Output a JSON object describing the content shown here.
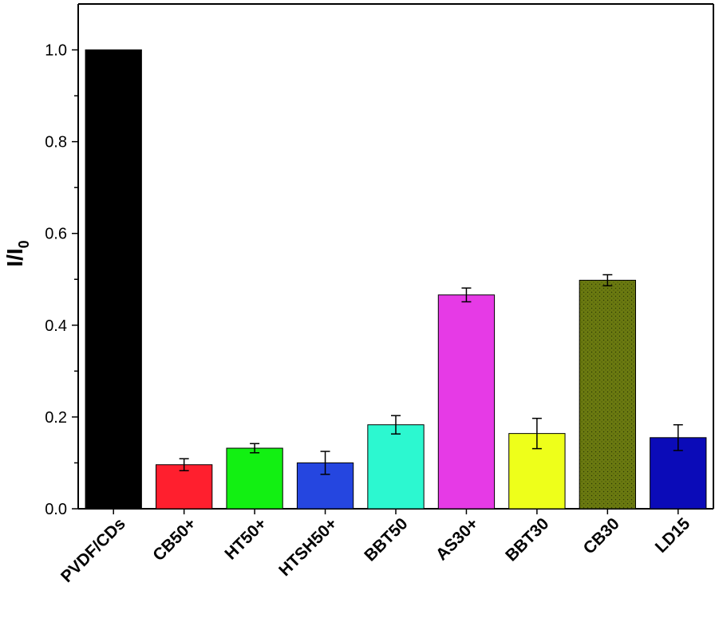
{
  "chart_data": {
    "type": "bar",
    "ylabel": "I/I",
    "ylabel_subscript": "0",
    "ylim": [
      0,
      1.1
    ],
    "yticks": [
      "0.0",
      "0.2",
      "0.4",
      "0.6",
      "0.8",
      "1.0"
    ],
    "categories": [
      "PVDF/CDs",
      "CB50+",
      "HT50+",
      "HTSH50+",
      "BBT50",
      "AS30+",
      "BBT30",
      "CB30",
      "LD15"
    ],
    "values": [
      1.0,
      0.096,
      0.132,
      0.1,
      0.183,
      0.466,
      0.164,
      0.498,
      0.155
    ],
    "errors": [
      0,
      0.013,
      0.01,
      0.025,
      0.02,
      0.015,
      0.033,
      0.012,
      0.028
    ],
    "colors": [
      "#000000",
      "#ff1f2e",
      "#12f012",
      "#2546e0",
      "#2cf8d0",
      "#e63ae6",
      "#eeff1a",
      "#6b7a10",
      "#0b0bb8"
    ],
    "patterns": [
      "none",
      "none",
      "none",
      "none",
      "none",
      "none",
      "none",
      "dots",
      "none"
    ],
    "grid": false,
    "legend": "none"
  }
}
